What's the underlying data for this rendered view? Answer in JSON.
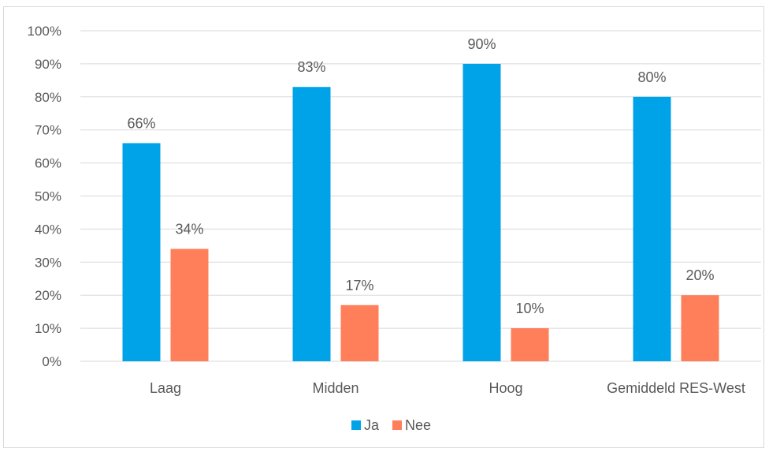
{
  "chart_data": {
    "type": "bar",
    "categories": [
      "Laag",
      "Midden",
      "Hoog",
      "Gemiddeld RES-West"
    ],
    "series": [
      {
        "name": "Ja",
        "values": [
          66,
          83,
          90,
          80
        ],
        "color": "#00a2e8"
      },
      {
        "name": "Nee",
        "values": [
          34,
          17,
          10,
          20
        ],
        "color": "#ff7f5a"
      }
    ],
    "data_labels": [
      [
        "66%",
        "83%",
        "90%",
        "80%"
      ],
      [
        "34%",
        "17%",
        "10%",
        "20%"
      ]
    ],
    "y_ticks": [
      "0%",
      "10%",
      "20%",
      "30%",
      "40%",
      "50%",
      "60%",
      "70%",
      "80%",
      "90%",
      "100%"
    ],
    "ylim": [
      0,
      100
    ],
    "grid": true,
    "legend_position": "bottom",
    "title": "",
    "xlabel": "",
    "ylabel": ""
  }
}
